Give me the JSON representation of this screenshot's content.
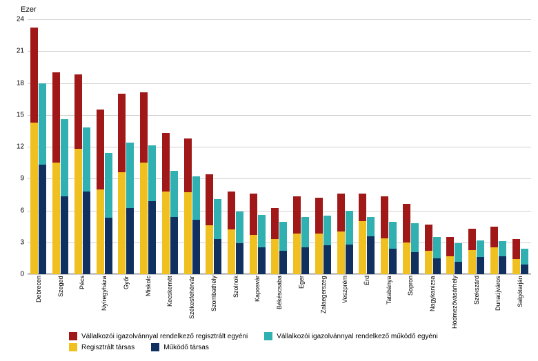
{
  "chart": {
    "type": "stacked-bar-grouped",
    "y_title": "Ezer",
    "ylim": [
      0,
      24
    ],
    "ytick_step": 3,
    "colors": {
      "reg_egyeni": "#a01818",
      "mukodo_egyeni": "#30b0b0",
      "reg_tarsas": "#f0c020",
      "mukodo_tarsas": "#103060",
      "grid": "#d0d0d0",
      "background": "#ffffff",
      "text": "#000000"
    },
    "legend": [
      {
        "key": "reg_egyeni",
        "label": "Vállalkozói igazolvánnyal rendelkező regisztrált egyéni"
      },
      {
        "key": "mukodo_egyeni",
        "label": "Vállalkozói igazolvánnyal rendelkező működő egyéni"
      },
      {
        "key": "reg_tarsas",
        "label": "Regisztrált társas"
      },
      {
        "key": "mukodo_tarsas",
        "label": "Működő társas"
      }
    ],
    "cities": [
      {
        "name": "Debrecen",
        "bar1": {
          "reg_tarsas": 14.3,
          "reg_egyeni": 8.9
        },
        "bar2": {
          "mukodo_tarsas": 10.3,
          "mukodo_egyeni": 7.7
        }
      },
      {
        "name": "Szeged",
        "bar1": {
          "reg_tarsas": 10.5,
          "reg_egyeni": 8.5
        },
        "bar2": {
          "mukodo_tarsas": 7.3,
          "mukodo_egyeni": 7.3
        }
      },
      {
        "name": "Pécs",
        "bar1": {
          "reg_tarsas": 11.8,
          "reg_egyeni": 7.0
        },
        "bar2": {
          "mukodo_tarsas": 7.8,
          "mukodo_egyeni": 6.0
        }
      },
      {
        "name": "Nyíregyháza",
        "bar1": {
          "reg_tarsas": 8.0,
          "reg_egyeni": 7.5
        },
        "bar2": {
          "mukodo_tarsas": 5.3,
          "mukodo_egyeni": 6.1
        }
      },
      {
        "name": "Győr",
        "bar1": {
          "reg_tarsas": 9.6,
          "reg_egyeni": 7.4
        },
        "bar2": {
          "mukodo_tarsas": 6.2,
          "mukodo_egyeni": 6.2
        }
      },
      {
        "name": "Miskolc",
        "bar1": {
          "reg_tarsas": 10.5,
          "reg_egyeni": 6.6
        },
        "bar2": {
          "mukodo_tarsas": 6.9,
          "mukodo_egyeni": 5.2
        }
      },
      {
        "name": "Kecskemét",
        "bar1": {
          "reg_tarsas": 7.8,
          "reg_egyeni": 5.5
        },
        "bar2": {
          "mukodo_tarsas": 5.4,
          "mukodo_egyeni": 4.3
        }
      },
      {
        "name": "Székesfehérvár",
        "bar1": {
          "reg_tarsas": 7.7,
          "reg_egyeni": 5.1
        },
        "bar2": {
          "mukodo_tarsas": 5.1,
          "mukodo_egyeni": 4.1
        }
      },
      {
        "name": "Szombathely",
        "bar1": {
          "reg_tarsas": 4.6,
          "reg_egyeni": 4.8
        },
        "bar2": {
          "mukodo_tarsas": 3.3,
          "mukodo_egyeni": 3.8
        }
      },
      {
        "name": "Szolnok",
        "bar1": {
          "reg_tarsas": 4.2,
          "reg_egyeni": 3.6
        },
        "bar2": {
          "mukodo_tarsas": 2.9,
          "mukodo_egyeni": 3.0
        }
      },
      {
        "name": "Kaposvár",
        "bar1": {
          "reg_tarsas": 3.7,
          "reg_egyeni": 3.9
        },
        "bar2": {
          "mukodo_tarsas": 2.5,
          "mukodo_egyeni": 3.1
        }
      },
      {
        "name": "Békéscsaba",
        "bar1": {
          "reg_tarsas": 3.3,
          "reg_egyeni": 2.9
        },
        "bar2": {
          "mukodo_tarsas": 2.2,
          "mukodo_egyeni": 2.7
        }
      },
      {
        "name": "Eger",
        "bar1": {
          "reg_tarsas": 3.8,
          "reg_egyeni": 3.5
        },
        "bar2": {
          "mukodo_tarsas": 2.5,
          "mukodo_egyeni": 2.9
        }
      },
      {
        "name": "Zalaegerszeg",
        "bar1": {
          "reg_tarsas": 3.8,
          "reg_egyeni": 3.4
        },
        "bar2": {
          "mukodo_tarsas": 2.7,
          "mukodo_egyeni": 2.8
        }
      },
      {
        "name": "Veszprém",
        "bar1": {
          "reg_tarsas": 4.0,
          "reg_egyeni": 3.6
        },
        "bar2": {
          "mukodo_tarsas": 2.8,
          "mukodo_egyeni": 3.2
        }
      },
      {
        "name": "Érd",
        "bar1": {
          "reg_tarsas": 5.0,
          "reg_egyeni": 2.6
        },
        "bar2": {
          "mukodo_tarsas": 3.6,
          "mukodo_egyeni": 1.8
        }
      },
      {
        "name": "Tatabánya",
        "bar1": {
          "reg_tarsas": 3.4,
          "reg_egyeni": 3.9
        },
        "bar2": {
          "mukodo_tarsas": 2.4,
          "mukodo_egyeni": 2.5
        }
      },
      {
        "name": "Sopron",
        "bar1": {
          "reg_tarsas": 3.0,
          "reg_egyeni": 3.6
        },
        "bar2": {
          "mukodo_tarsas": 2.1,
          "mukodo_egyeni": 2.7
        }
      },
      {
        "name": "Nagykanizsa",
        "bar1": {
          "reg_tarsas": 2.2,
          "reg_egyeni": 2.5
        },
        "bar2": {
          "mukodo_tarsas": 1.5,
          "mukodo_egyeni": 2.0
        }
      },
      {
        "name": "Hódmezővásárhely",
        "bar1": {
          "reg_tarsas": 1.7,
          "reg_egyeni": 1.8
        },
        "bar2": {
          "mukodo_tarsas": 1.2,
          "mukodo_egyeni": 1.7
        }
      },
      {
        "name": "Szekszárd",
        "bar1": {
          "reg_tarsas": 2.3,
          "reg_egyeni": 2.0
        },
        "bar2": {
          "mukodo_tarsas": 1.6,
          "mukodo_egyeni": 1.6
        }
      },
      {
        "name": "Dunaújváros",
        "bar1": {
          "reg_tarsas": 2.5,
          "reg_egyeni": 2.0
        },
        "bar2": {
          "mukodo_tarsas": 1.7,
          "mukodo_egyeni": 1.4
        }
      },
      {
        "name": "Salgótarján",
        "bar1": {
          "reg_tarsas": 1.4,
          "reg_egyeni": 1.9
        },
        "bar2": {
          "mukodo_tarsas": 0.9,
          "mukodo_egyeni": 1.5
        }
      }
    ]
  }
}
